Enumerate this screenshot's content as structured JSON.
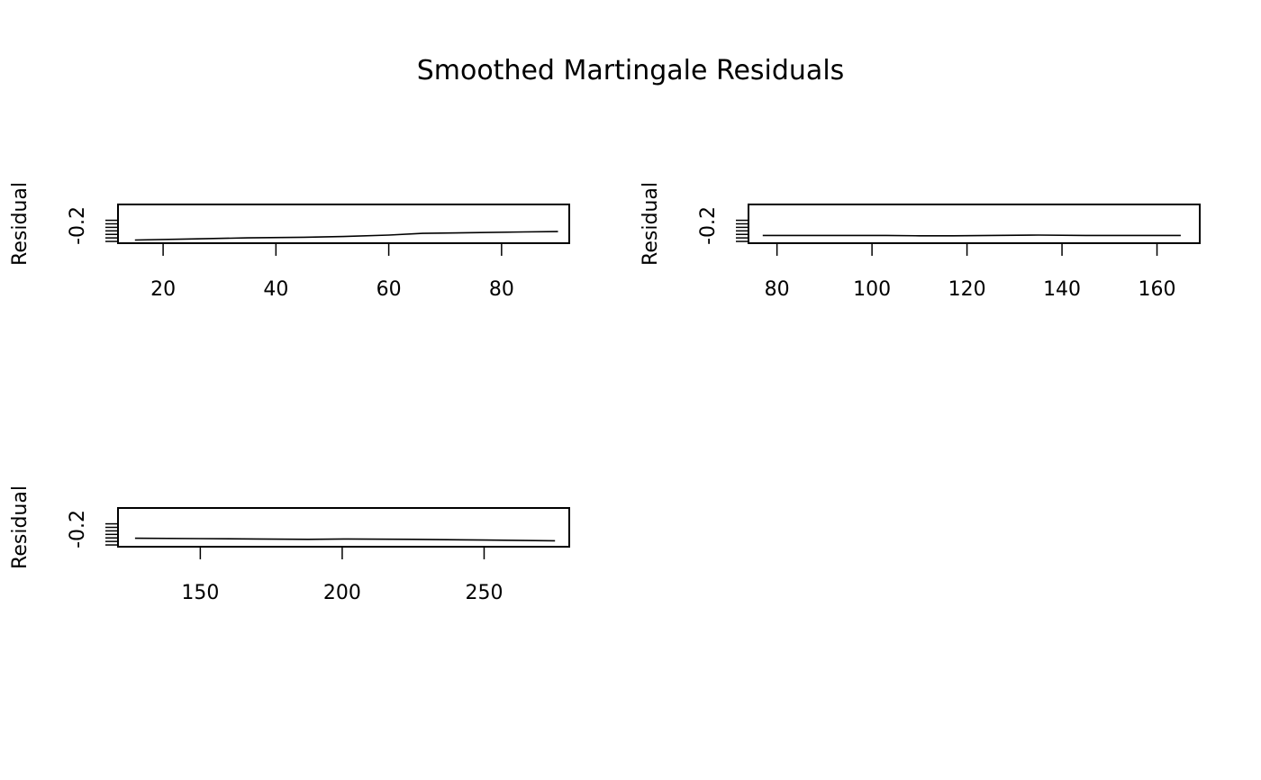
{
  "figure": {
    "title": "Smoothed Martingale Residuals"
  },
  "chart_data": [
    {
      "type": "line",
      "title": "",
      "xlabel": "",
      "ylabel": "Residual",
      "xlim": [
        12,
        92
      ],
      "ylim": [
        -0.25,
        -0.14
      ],
      "x_ticks": [
        20,
        40,
        60,
        80
      ],
      "y_ticks": [
        -0.245,
        -0.235,
        -0.225,
        -0.215,
        -0.205,
        -0.195,
        -0.185
      ],
      "y_tick_labels": [
        {
          "value": -0.2,
          "label": "-0.2"
        }
      ],
      "grid": false,
      "series": [
        {
          "x": [
            15,
            25,
            35,
            45,
            52,
            60,
            66,
            75,
            84,
            90
          ],
          "y": [
            -0.241,
            -0.238,
            -0.235,
            -0.233,
            -0.231,
            -0.227,
            -0.222,
            -0.22,
            -0.218,
            -0.217
          ],
          "color": "#000000"
        }
      ]
    },
    {
      "type": "line",
      "title": "",
      "xlabel": "",
      "ylabel": "Residual",
      "xlim": [
        74,
        169
      ],
      "ylim": [
        -0.25,
        -0.14
      ],
      "x_ticks": [
        80,
        100,
        120,
        140,
        160
      ],
      "y_ticks": [
        -0.245,
        -0.235,
        -0.225,
        -0.215,
        -0.205,
        -0.195,
        -0.185
      ],
      "y_tick_labels": [
        {
          "value": -0.2,
          "label": "-0.2"
        }
      ],
      "grid": false,
      "series": [
        {
          "x": [
            77,
            90,
            103,
            110,
            117,
            125,
            135,
            145,
            155,
            165
          ],
          "y": [
            -0.228,
            -0.228,
            -0.228,
            -0.229,
            -0.229,
            -0.228,
            -0.227,
            -0.228,
            -0.228,
            -0.228
          ],
          "color": "#000000"
        }
      ]
    },
    {
      "type": "line",
      "title": "",
      "xlabel": "",
      "ylabel": "Residual",
      "xlim": [
        121,
        280
      ],
      "ylim": [
        -0.25,
        -0.14
      ],
      "x_ticks": [
        150,
        200,
        250
      ],
      "y_ticks": [
        -0.245,
        -0.235,
        -0.225,
        -0.215,
        -0.205,
        -0.195,
        -0.185
      ],
      "y_tick_labels": [
        {
          "value": -0.2,
          "label": "-0.2"
        }
      ],
      "grid": false,
      "series": [
        {
          "x": [
            127,
            150,
            170,
            188,
            202,
            225,
            250,
            275
          ],
          "y": [
            -0.226,
            -0.227,
            -0.228,
            -0.229,
            -0.228,
            -0.229,
            -0.231,
            -0.233
          ],
          "color": "#000000"
        }
      ]
    }
  ]
}
